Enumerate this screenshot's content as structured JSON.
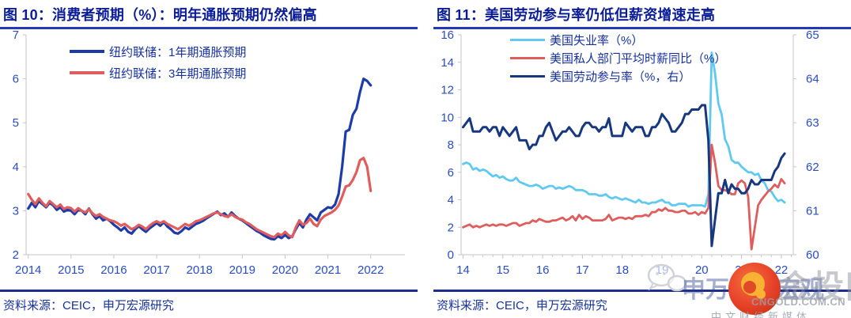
{
  "figures": [
    {
      "title": "图 10：消费者预期（%）：明年通胀预期仍然偏高",
      "source": "资料来源：CEIC，申万宏源研究"
    },
    {
      "title": "图 11：美国劳动参与率仍低但薪资增速走高",
      "source": "资料来源：CEIC，申万宏源研究"
    }
  ],
  "watermark": {
    "brand_text": "申万宏源宏观",
    "site_name": "金投网",
    "site_domain": "CNGOLD.COM.CN",
    "site_slogan": "中文财经新媒体",
    "logo_red": "#e8432a",
    "logo_gold": "#f9b233"
  },
  "colors": {
    "title_navy": "#0a1c96",
    "underline_blue": "#2438b8",
    "axis_label": "#2a4cc4",
    "axis_line": "#c6c6c6",
    "legend_text": "#16309e",
    "footer_rule": "#1d2f8c"
  },
  "chart_data": [
    {
      "type": "line",
      "title": "图 10：消费者预期（%）：明年通胀预期仍然偏高",
      "xlim": [
        2013.95,
        2022.8
      ],
      "ylim": [
        2,
        7
      ],
      "yticks": [
        2,
        3,
        4,
        5,
        6,
        7
      ],
      "xticks": [
        2014,
        2015,
        2016,
        2017,
        2018,
        2019,
        2020,
        2021,
        2022
      ],
      "xtick_labels": [
        "2014",
        "2015",
        "2016",
        "2017",
        "2018",
        "2019",
        "2020",
        "2021",
        "2022"
      ],
      "x_start": 2014.0,
      "x_step": 0.083333,
      "x_unit": "monthly",
      "legend_position": "top-center",
      "series": [
        {
          "key": "ny-fed-1y-inflation-expectation",
          "name": "纽约联储：1年期通胀预期",
          "color": "#1e3ca8",
          "values": [
            3.05,
            3.18,
            3.08,
            3.22,
            3.15,
            3.08,
            3.18,
            3.12,
            3.02,
            3.08,
            2.98,
            3.02,
            3.0,
            2.92,
            3.02,
            3.0,
            2.92,
            3.05,
            2.92,
            2.82,
            2.88,
            2.78,
            2.82,
            2.76,
            2.68,
            2.62,
            2.55,
            2.62,
            2.52,
            2.48,
            2.58,
            2.65,
            2.58,
            2.52,
            2.6,
            2.66,
            2.72,
            2.66,
            2.74,
            2.64,
            2.58,
            2.5,
            2.48,
            2.54,
            2.62,
            2.58,
            2.64,
            2.7,
            2.73,
            2.77,
            2.83,
            2.88,
            2.93,
            2.98,
            2.9,
            2.94,
            2.86,
            2.96,
            2.88,
            2.82,
            2.78,
            2.72,
            2.66,
            2.6,
            2.54,
            2.5,
            2.44,
            2.4,
            2.36,
            2.35,
            2.42,
            2.38,
            2.45,
            2.38,
            2.42,
            2.58,
            2.72,
            2.62,
            2.8,
            2.92,
            2.85,
            2.78,
            2.96,
            3.02,
            3.08,
            3.06,
            3.14,
            3.38,
            4.0,
            4.8,
            4.84,
            5.18,
            5.32,
            5.7,
            6.0,
            5.95,
            5.85
          ]
        },
        {
          "key": "ny-fed-3y-inflation-expectation",
          "name": "纽约联储：3年期通胀预期",
          "color": "#e05d5d",
          "values": [
            3.38,
            3.25,
            3.15,
            3.28,
            3.18,
            3.1,
            3.22,
            3.15,
            3.08,
            3.14,
            3.04,
            3.08,
            3.06,
            2.98,
            3.06,
            3.0,
            2.96,
            3.04,
            2.94,
            2.88,
            2.92,
            2.86,
            2.82,
            2.78,
            2.76,
            2.72,
            2.66,
            2.7,
            2.64,
            2.58,
            2.62,
            2.68,
            2.64,
            2.58,
            2.66,
            2.72,
            2.76,
            2.72,
            2.76,
            2.7,
            2.66,
            2.62,
            2.58,
            2.64,
            2.7,
            2.66,
            2.7,
            2.76,
            2.78,
            2.82,
            2.86,
            2.9,
            2.94,
            2.96,
            2.92,
            2.88,
            2.86,
            2.92,
            2.86,
            2.82,
            2.8,
            2.74,
            2.7,
            2.64,
            2.58,
            2.54,
            2.5,
            2.46,
            2.42,
            2.4,
            2.48,
            2.44,
            2.52,
            2.44,
            2.4,
            2.62,
            2.78,
            2.68,
            2.72,
            2.82,
            2.7,
            2.65,
            2.8,
            2.88,
            2.92,
            2.96,
            3.02,
            3.12,
            3.32,
            3.55,
            3.58,
            3.7,
            3.88,
            4.15,
            4.2,
            4.0,
            3.45
          ]
        }
      ]
    },
    {
      "type": "line",
      "title": "图 11：美国劳动参与率仍低但薪资增速走高",
      "xlim": [
        13.95,
        22.3
      ],
      "ylim_left": [
        0,
        16
      ],
      "ylim_right": [
        60,
        65
      ],
      "yticks_left": [
        0,
        2,
        4,
        6,
        8,
        10,
        12,
        14,
        16
      ],
      "yticks_right": [
        60,
        61,
        62,
        63,
        64,
        65
      ],
      "xticks": [
        14,
        15,
        16,
        17,
        18,
        19,
        20,
        21,
        22
      ],
      "xtick_labels": [
        "14",
        "15",
        "16",
        "17",
        "18",
        "19",
        "20",
        "21",
        "22"
      ],
      "x_minor_step": 0.25,
      "x_start": 14.0,
      "x_step": 0.083333,
      "x_unit": "monthly",
      "legend_position": "top-center",
      "series": [
        {
          "key": "us-unemployment-rate",
          "name": "美国失业率（%）",
          "color": "#5fc9f2",
          "axis": "left",
          "values": [
            6.6,
            6.7,
            6.6,
            6.2,
            6.3,
            6.1,
            6.2,
            6.1,
            5.9,
            5.7,
            5.8,
            5.6,
            5.7,
            5.5,
            5.4,
            5.4,
            5.6,
            5.3,
            5.2,
            5.1,
            5.0,
            5.0,
            5.1,
            5.0,
            4.8,
            4.9,
            5.0,
            5.0,
            4.8,
            4.9,
            4.8,
            4.9,
            5.0,
            4.9,
            4.7,
            4.7,
            4.7,
            4.6,
            4.4,
            4.4,
            4.4,
            4.3,
            4.3,
            4.4,
            4.2,
            4.1,
            4.2,
            4.1,
            4.0,
            4.1,
            4.0,
            3.9,
            3.8,
            4.0,
            3.8,
            3.8,
            3.7,
            3.8,
            3.8,
            3.9,
            4.0,
            3.8,
            3.8,
            3.6,
            3.6,
            3.7,
            3.7,
            3.7,
            3.5,
            3.6,
            3.6,
            3.6,
            3.6,
            3.5,
            4.4,
            14.7,
            13.2,
            11.0,
            10.2,
            8.4,
            7.9,
            6.9,
            6.7,
            6.7,
            6.4,
            6.2,
            6.0,
            6.0,
            5.8,
            5.9,
            5.4,
            5.2,
            4.7,
            4.6,
            4.2,
            3.9,
            4.0,
            3.8
          ]
        },
        {
          "key": "us-private-avg-hourly-earnings-yoy",
          "name": "美国私人部门平均时薪同比（%）",
          "color": "#e05d5d",
          "axis": "left",
          "values": [
            2.0,
            2.1,
            2.2,
            2.0,
            2.1,
            2.0,
            2.1,
            2.2,
            2.1,
            2.2,
            2.1,
            2.2,
            2.2,
            2.1,
            2.2,
            2.3,
            2.3,
            2.1,
            2.2,
            2.3,
            2.3,
            2.5,
            2.4,
            2.6,
            2.5,
            2.4,
            2.4,
            2.5,
            2.5,
            2.6,
            2.7,
            2.5,
            2.6,
            2.8,
            2.5,
            2.9,
            2.6,
            2.8,
            2.7,
            2.5,
            2.5,
            2.5,
            2.5,
            2.6,
            2.9,
            2.5,
            2.6,
            2.7,
            2.7,
            2.6,
            2.7,
            2.6,
            2.8,
            2.8,
            2.8,
            2.9,
            2.8,
            3.1,
            3.1,
            3.3,
            3.2,
            3.4,
            3.2,
            3.2,
            3.1,
            3.1,
            3.2,
            3.2,
            3.0,
            3.0,
            3.1,
            2.9,
            3.1,
            3.0,
            3.4,
            8.0,
            6.7,
            5.0,
            4.7,
            4.7,
            4.6,
            4.4,
            4.4,
            5.2,
            5.4,
            5.2,
            4.2,
            0.4,
            2.0,
            3.6,
            4.0,
            4.3,
            4.6,
            4.8,
            5.1,
            4.9,
            5.5,
            5.2
          ]
        },
        {
          "key": "us-labor-force-participation-rate",
          "name": "美国劳动参与率（%，右）",
          "color": "#17387f",
          "axis": "right",
          "values": [
            62.9,
            63.0,
            63.1,
            62.8,
            62.8,
            62.8,
            62.9,
            62.9,
            62.8,
            62.9,
            62.9,
            62.7,
            62.9,
            62.8,
            62.7,
            62.8,
            62.9,
            62.6,
            62.6,
            62.6,
            62.4,
            62.5,
            62.5,
            62.7,
            62.7,
            62.9,
            63.0,
            62.8,
            62.6,
            62.7,
            62.8,
            62.8,
            62.9,
            62.8,
            62.7,
            62.7,
            62.9,
            63.0,
            63.0,
            62.9,
            62.9,
            62.8,
            62.9,
            62.9,
            63.1,
            62.7,
            62.7,
            62.7,
            62.7,
            63.0,
            62.9,
            62.8,
            62.9,
            62.9,
            62.9,
            62.7,
            62.7,
            62.9,
            62.9,
            63.0,
            63.2,
            63.1,
            63.0,
            62.8,
            62.8,
            62.9,
            63.0,
            63.2,
            63.2,
            63.3,
            63.3,
            63.3,
            63.4,
            63.4,
            62.6,
            60.2,
            60.8,
            61.4,
            61.4,
            61.7,
            61.4,
            61.6,
            61.5,
            61.5,
            61.4,
            61.4,
            61.5,
            61.7,
            61.6,
            61.6,
            61.7,
            61.7,
            61.7,
            61.7,
            61.9,
            62.0,
            62.2,
            62.3
          ]
        }
      ]
    }
  ]
}
